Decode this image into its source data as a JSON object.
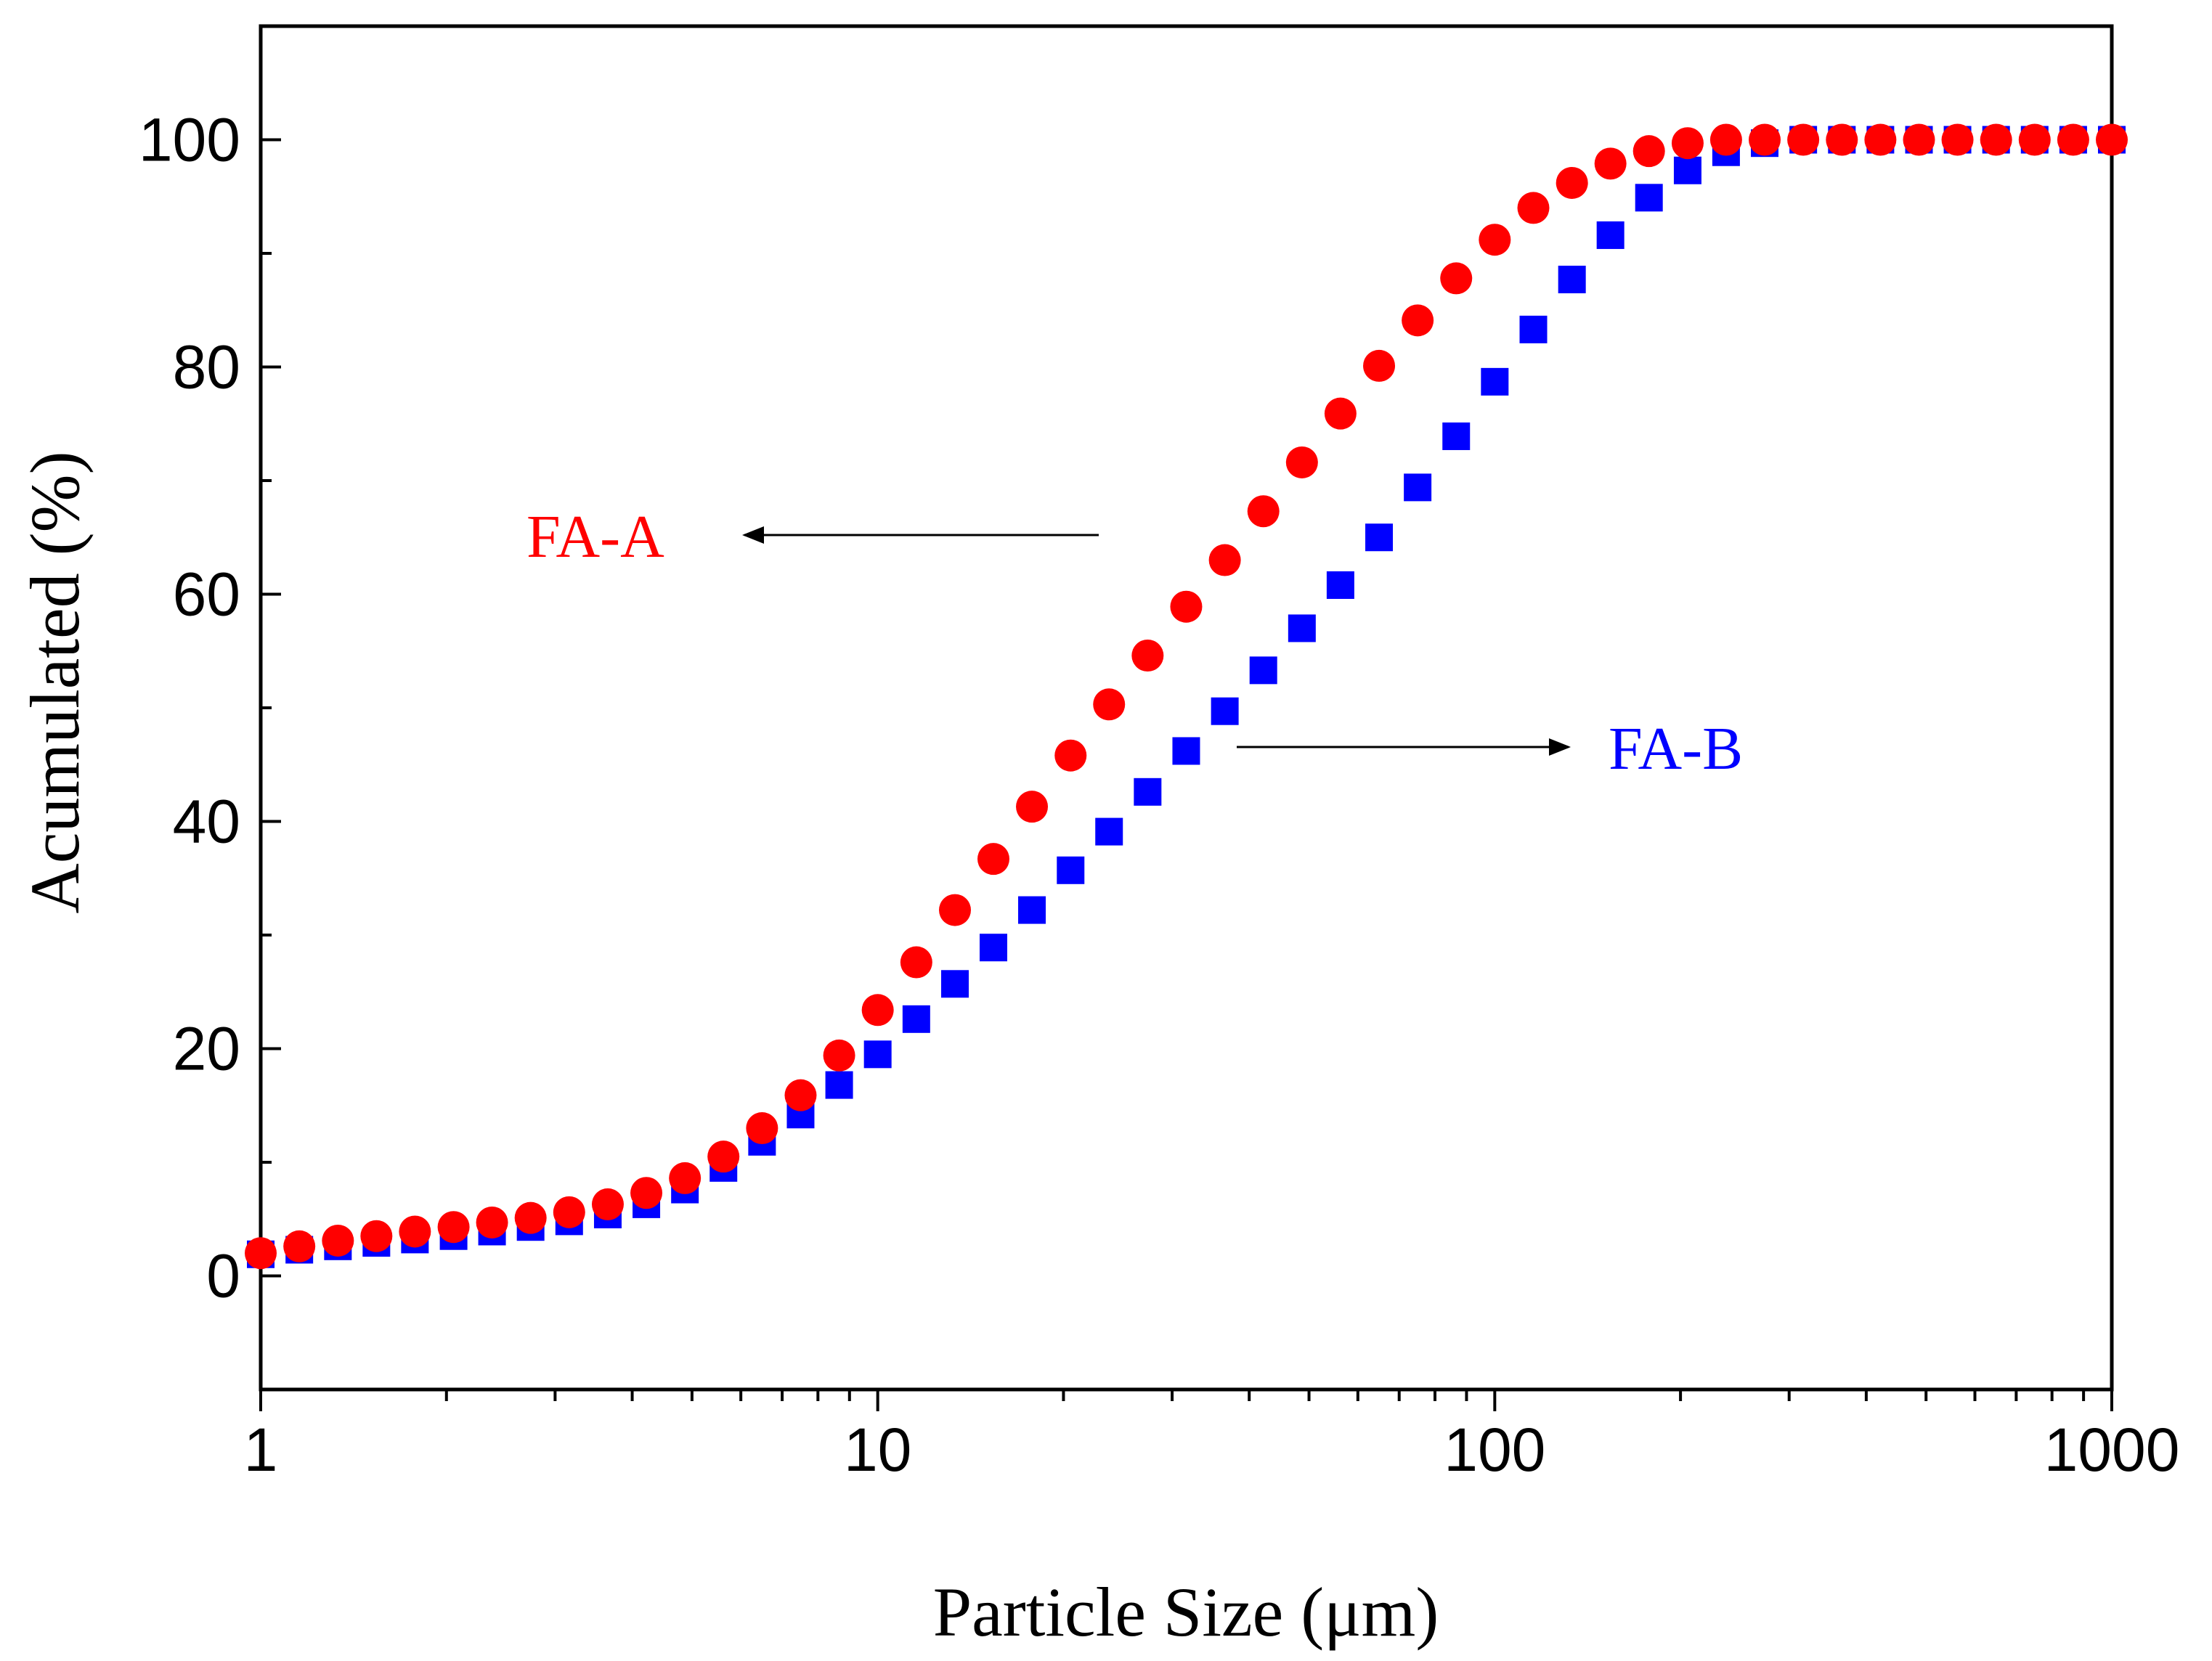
{
  "chart_data": {
    "type": "scatter",
    "title": "",
    "xlabel": "Particle Size (μm)",
    "ylabel": "Acumulated (%)",
    "xscale": "log",
    "xlim": [
      1,
      1000
    ],
    "ylim": [
      -10,
      110
    ],
    "x_ticks": [
      1,
      10,
      100,
      1000
    ],
    "x_tick_labels": [
      "1",
      "10",
      "100",
      "1000"
    ],
    "y_ticks": [
      0,
      20,
      40,
      60,
      80,
      100
    ],
    "y_tick_labels": [
      "0",
      "20",
      "40",
      "60",
      "80",
      "100"
    ],
    "grid": false,
    "x": [
      1,
      1.155,
      1.334,
      1.54,
      1.778,
      2.054,
      2.371,
      2.738,
      3.162,
      3.652,
      4.217,
      4.87,
      5.623,
      6.494,
      7.499,
      8.66,
      10,
      11.55,
      13.34,
      15.4,
      17.78,
      20.54,
      23.71,
      27.38,
      31.62,
      36.52,
      42.17,
      48.7,
      56.23,
      64.94,
      74.99,
      86.6,
      100,
      115.5,
      133.4,
      154,
      177.8,
      205.4,
      237.1,
      273.8,
      316.2,
      365.2,
      421.7,
      487,
      562.3,
      649.4,
      749.9,
      866,
      1000
    ],
    "series": [
      {
        "name": "FA-A",
        "marker": "circle",
        "color": "#ff0000",
        "values": [
          2.0,
          2.6,
          3.1,
          3.5,
          3.9,
          4.3,
          4.7,
          5.1,
          5.6,
          6.3,
          7.3,
          8.6,
          10.5,
          13.0,
          15.9,
          19.4,
          23.4,
          27.6,
          32.2,
          36.7,
          41.3,
          45.8,
          50.3,
          54.6,
          58.9,
          63.0,
          67.3,
          71.6,
          75.9,
          80.1,
          84.1,
          87.8,
          91.2,
          94.0,
          96.2,
          97.9,
          99.0,
          99.7,
          100,
          100,
          100,
          100,
          100,
          100,
          100,
          100,
          100,
          100,
          100
        ]
      },
      {
        "name": "FA-B",
        "marker": "square",
        "color": "#0000ff",
        "values": [
          1.9,
          2.3,
          2.6,
          2.9,
          3.2,
          3.5,
          3.9,
          4.3,
          4.8,
          5.4,
          6.3,
          7.6,
          9.5,
          11.8,
          14.2,
          16.8,
          19.5,
          22.6,
          25.7,
          28.9,
          32.2,
          35.7,
          39.1,
          42.6,
          46.2,
          49.7,
          53.3,
          57.0,
          60.8,
          65.0,
          69.4,
          73.9,
          78.7,
          83.3,
          87.7,
          91.6,
          94.9,
          97.3,
          98.9,
          99.7,
          100,
          100,
          100,
          100,
          100,
          100,
          100,
          100,
          100
        ]
      }
    ],
    "annotations": [
      {
        "text": "FA-A",
        "arrow": "left",
        "color": "#ff0000"
      },
      {
        "text": "FA-B",
        "arrow": "right",
        "color": "#0000ff"
      }
    ]
  }
}
